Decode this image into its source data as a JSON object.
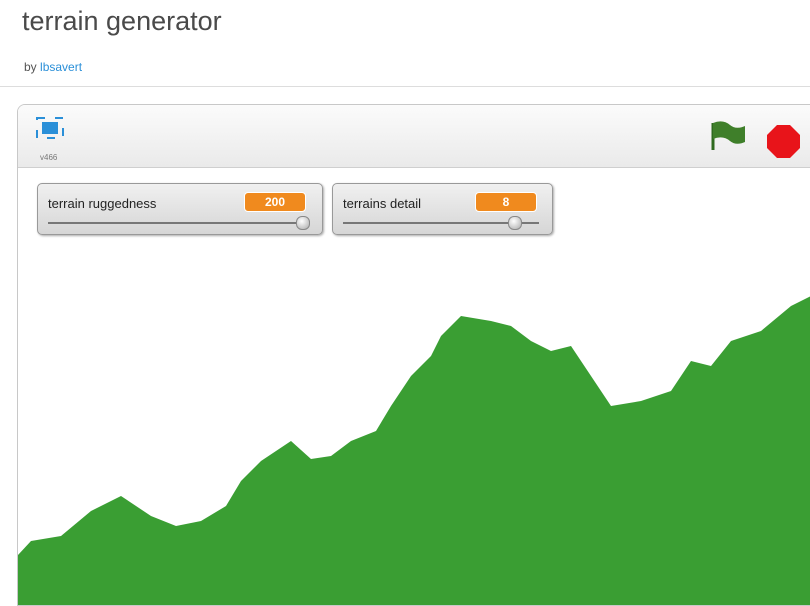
{
  "header": {
    "title": "terrain generator",
    "by": "by",
    "author": "lbsavert"
  },
  "player": {
    "version": "v466",
    "monitors": [
      {
        "label": "terrain ruggedness",
        "value": "200"
      },
      {
        "label": "terrains detail",
        "value": "8"
      }
    ]
  }
}
